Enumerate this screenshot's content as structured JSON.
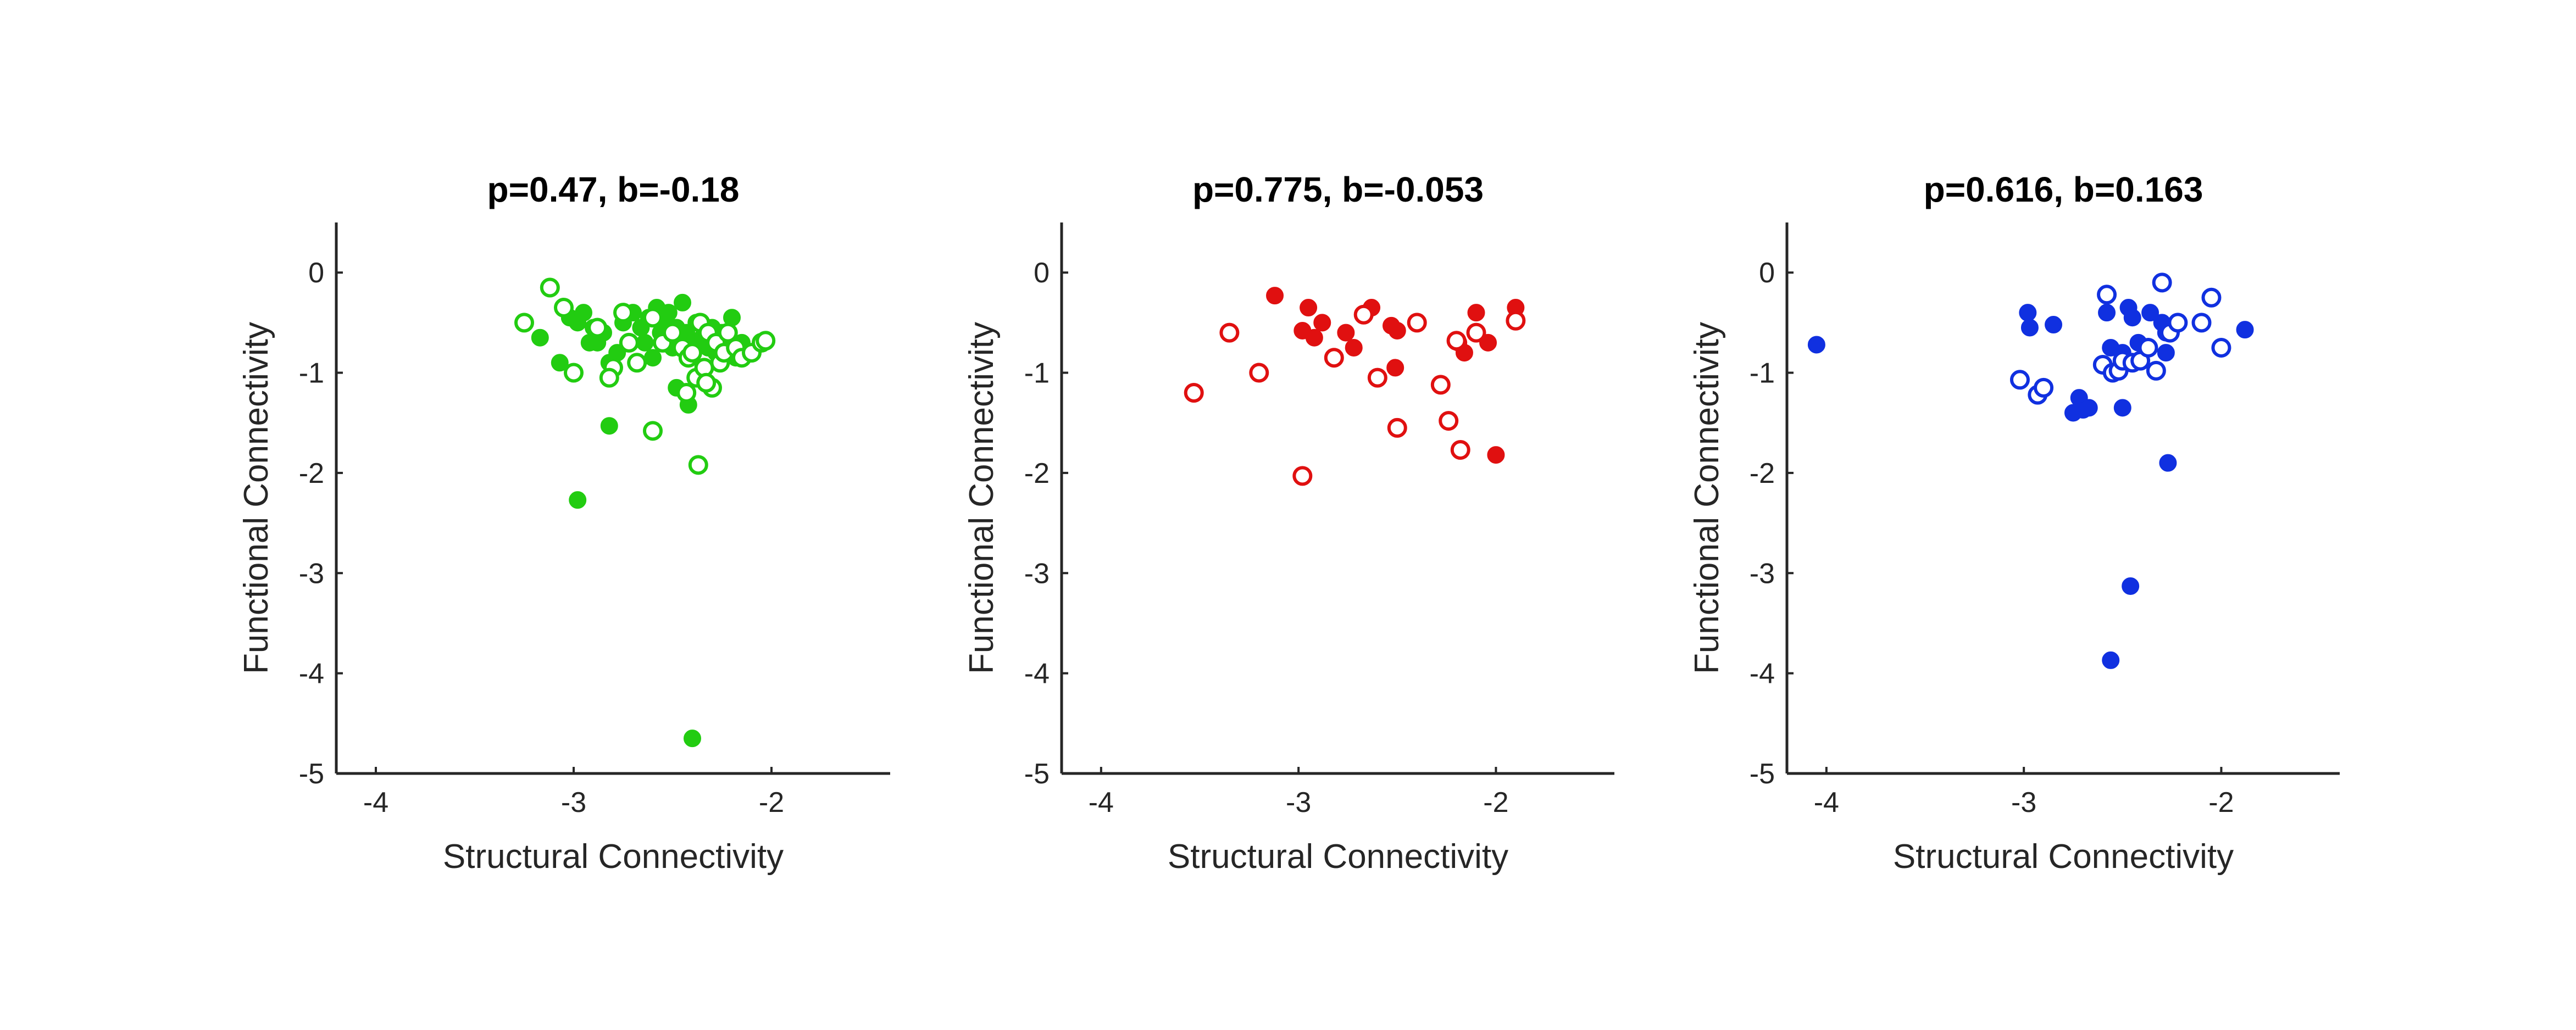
{
  "chart_data": [
    {
      "type": "scatter",
      "title": "p=0.47, b=-0.18",
      "xlabel": "Structural Connectivity",
      "ylabel": "Functional Connectivity",
      "xlim": [
        -4.2,
        -1.4
      ],
      "ylim": [
        -5,
        0.5
      ],
      "xticks": [
        -4,
        -3,
        -2
      ],
      "yticks": [
        0,
        -1,
        -2,
        -3,
        -4,
        -5
      ],
      "color": "#22cc11",
      "series": [
        {
          "marker": "filled",
          "x": [
            -3.17,
            -3.07,
            -3.02,
            -2.98,
            -2.95,
            -2.92,
            -2.9,
            -2.88,
            -2.85,
            -2.82,
            -2.78,
            -2.75,
            -2.7,
            -2.66,
            -2.64,
            -2.62,
            -2.6,
            -2.58,
            -2.56,
            -2.54,
            -2.52,
            -2.5,
            -2.48,
            -2.45,
            -2.43,
            -2.4,
            -2.38,
            -2.35,
            -2.32,
            -2.3,
            -2.28,
            -2.25,
            -2.22,
            -2.2,
            -2.18,
            -2.15,
            -2.48,
            -2.42,
            -2.82,
            -2.98,
            -2.4
          ],
          "y": [
            -0.65,
            -0.9,
            -0.45,
            -0.5,
            -0.4,
            -0.7,
            -0.55,
            -0.7,
            -0.6,
            -0.9,
            -0.8,
            -0.5,
            -0.4,
            -0.55,
            -0.7,
            -0.45,
            -0.85,
            -0.35,
            -0.6,
            -0.5,
            -0.4,
            -0.75,
            -0.55,
            -0.3,
            -0.6,
            -0.7,
            -0.5,
            -0.65,
            -0.75,
            -0.55,
            -0.8,
            -0.6,
            -0.7,
            -0.45,
            -0.85,
            -0.7,
            -1.15,
            -1.32,
            -1.53,
            -2.27,
            -4.65
          ]
        },
        {
          "marker": "hollow",
          "x": [
            -3.25,
            -3.12,
            -3.05,
            -3.0,
            -2.88,
            -2.8,
            -2.75,
            -2.72,
            -2.68,
            -2.6,
            -2.55,
            -2.5,
            -2.45,
            -2.42,
            -2.4,
            -2.38,
            -2.36,
            -2.34,
            -2.32,
            -2.3,
            -2.28,
            -2.26,
            -2.24,
            -2.22,
            -2.18,
            -2.15,
            -2.1,
            -2.05,
            -2.03,
            -2.82,
            -2.6,
            -2.37,
            -2.33,
            -2.43
          ],
          "y": [
            -0.5,
            -0.15,
            -0.35,
            -1.0,
            -0.55,
            -0.95,
            -0.4,
            -0.7,
            -0.9,
            -0.45,
            -0.7,
            -0.6,
            -0.75,
            -0.85,
            -0.8,
            -1.05,
            -0.5,
            -0.95,
            -0.6,
            -1.15,
            -0.7,
            -0.9,
            -0.8,
            -0.6,
            -0.75,
            -0.85,
            -0.8,
            -0.7,
            -0.68,
            -1.05,
            -1.58,
            -1.92,
            -1.1,
            -1.2
          ]
        }
      ]
    },
    {
      "type": "scatter",
      "title": "p=0.775, b=-0.053",
      "xlabel": "Structural Connectivity",
      "ylabel": "Functional Connectivity",
      "xlim": [
        -4.2,
        -1.4
      ],
      "ylim": [
        -5,
        0.5
      ],
      "xticks": [
        -4,
        -3,
        -2
      ],
      "yticks": [
        0,
        -1,
        -2,
        -3,
        -4,
        -5
      ],
      "color": "#e01010",
      "series": [
        {
          "marker": "filled",
          "x": [
            -3.12,
            -2.95,
            -2.98,
            -2.92,
            -2.88,
            -2.76,
            -2.72,
            -2.63,
            -2.53,
            -2.5,
            -2.51,
            -2.19,
            -2.16,
            -2.1,
            -2.04,
            -1.9,
            -2.0
          ],
          "y": [
            -0.23,
            -0.35,
            -0.58,
            -0.65,
            -0.5,
            -0.6,
            -0.75,
            -0.35,
            -0.53,
            -0.58,
            -0.95,
            -0.7,
            -0.8,
            -0.4,
            -0.7,
            -0.35,
            -1.82
          ]
        },
        {
          "marker": "hollow",
          "x": [
            -3.53,
            -3.35,
            -3.2,
            -2.98,
            -2.82,
            -2.67,
            -2.6,
            -2.5,
            -2.4,
            -2.28,
            -2.24,
            -2.2,
            -2.18,
            -2.1,
            -1.9
          ],
          "y": [
            -1.2,
            -0.6,
            -1.0,
            -2.03,
            -0.85,
            -0.42,
            -1.05,
            -1.55,
            -0.5,
            -1.12,
            -1.48,
            -0.68,
            -1.77,
            -0.6,
            -0.48
          ]
        }
      ]
    },
    {
      "type": "scatter",
      "title": "p=0.616, b=0.163",
      "xlabel": "Structural Connectivity",
      "ylabel": "Functional Connectivity",
      "xlim": [
        -4.2,
        -1.4
      ],
      "ylim": [
        -5,
        0.5
      ],
      "xticks": [
        -4,
        -3,
        -2
      ],
      "yticks": [
        0,
        -1,
        -2,
        -3,
        -4,
        -5
      ],
      "color": "#1030e0",
      "series": [
        {
          "marker": "filled",
          "x": [
            -4.05,
            -2.98,
            -2.97,
            -2.85,
            -2.75,
            -2.72,
            -2.7,
            -2.67,
            -2.58,
            -2.56,
            -2.5,
            -2.47,
            -2.45,
            -2.42,
            -2.36,
            -2.3,
            -2.28,
            -2.27,
            -1.88,
            -2.5,
            -2.46,
            -2.56,
            -2.28
          ],
          "y": [
            -0.72,
            -0.4,
            -0.55,
            -0.52,
            -1.4,
            -1.25,
            -1.37,
            -1.35,
            -0.4,
            -0.75,
            -0.8,
            -0.35,
            -0.45,
            -0.7,
            -0.4,
            -0.5,
            -0.8,
            -1.9,
            -0.57,
            -1.35,
            -3.13,
            -3.87,
            -0.6
          ]
        },
        {
          "marker": "hollow",
          "x": [
            -3.02,
            -2.93,
            -2.9,
            -2.6,
            -2.58,
            -2.55,
            -2.52,
            -2.5,
            -2.45,
            -2.41,
            -2.37,
            -2.33,
            -2.3,
            -2.26,
            -2.22,
            -2.1,
            -2.05,
            -2.0
          ],
          "y": [
            -1.07,
            -1.22,
            -1.15,
            -0.92,
            -0.22,
            -1.0,
            -0.98,
            -0.88,
            -0.9,
            -0.88,
            -0.75,
            -0.98,
            -0.1,
            -0.6,
            -0.5,
            -0.5,
            -0.25,
            -0.75
          ]
        }
      ]
    }
  ]
}
